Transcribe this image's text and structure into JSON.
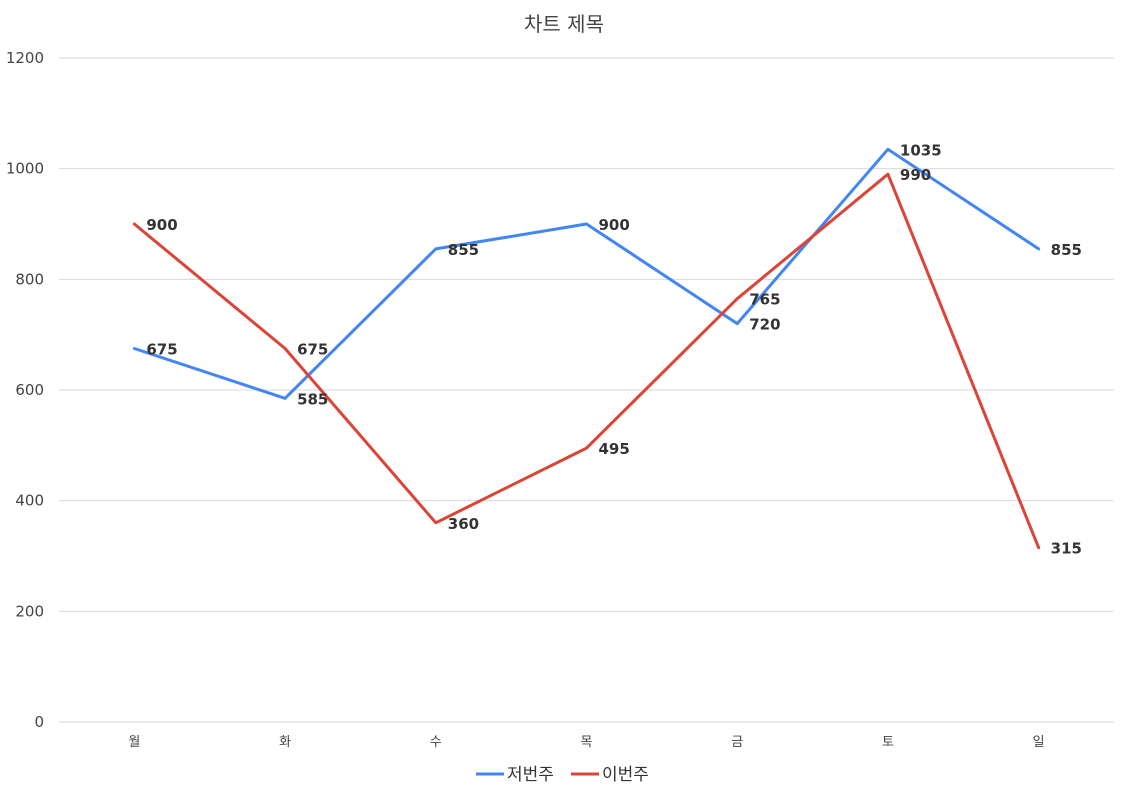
{
  "chart_data": {
    "type": "line",
    "title": "차트 제목",
    "xlabel": "",
    "ylabel": "",
    "categories": [
      "월",
      "화",
      "수",
      "목",
      "금",
      "토",
      "일"
    ],
    "series": [
      {
        "name": "저번주",
        "color": "#4285F4",
        "values": [
          675,
          585,
          855,
          900,
          720,
          1035,
          855
        ]
      },
      {
        "name": "이번주",
        "color": "#DB4437",
        "values": [
          900,
          675,
          360,
          495,
          765,
          990,
          315
        ]
      }
    ],
    "ylim": [
      0,
      1200
    ],
    "yticks": [
      0,
      200,
      400,
      600,
      800,
      1000,
      1200
    ],
    "grid": true,
    "legend": "bottom",
    "data_labels": true
  }
}
